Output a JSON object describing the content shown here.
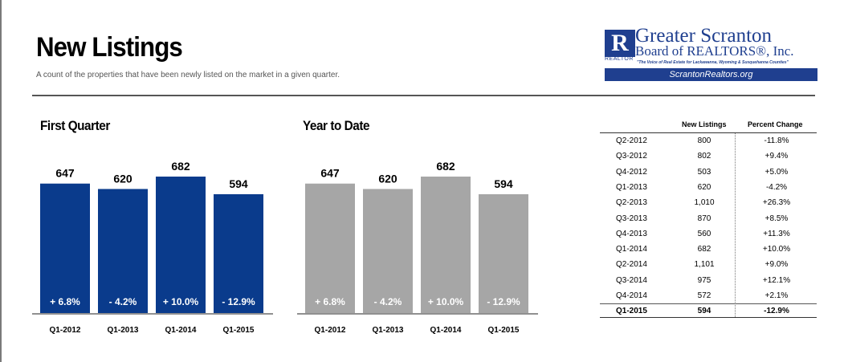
{
  "header": {
    "title": "New Listings",
    "subtitle": "A count of the properties that have been newly listed on the market in a given quarter."
  },
  "logo": {
    "line1": "Greater Scranton",
    "line2": "Board of REALTORS®, Inc.",
    "realtor": "REALTOR",
    "tagline": "\"The Voice of Real Estate for Lackawanna, Wyoming & Susquehanna Counties\"",
    "url": "ScrantonRealtors.org",
    "color": "#1f3f8f"
  },
  "chart_data": [
    {
      "type": "bar",
      "title": "First Quarter",
      "categories": [
        "Q1-2012",
        "Q1-2013",
        "Q1-2014",
        "Q1-2015"
      ],
      "values": [
        647,
        620,
        682,
        594
      ],
      "value_labels": [
        "647",
        "620",
        "682",
        "594"
      ],
      "change_labels": [
        "+ 6.8%",
        "- 4.2%",
        "+ 10.0%",
        "- 12.9%"
      ],
      "color": "#0a3b8c",
      "ylim": [
        0,
        682
      ]
    },
    {
      "type": "bar",
      "title": "Year to Date",
      "categories": [
        "Q1-2012",
        "Q1-2013",
        "Q1-2014",
        "Q1-2015"
      ],
      "values": [
        647,
        620,
        682,
        594
      ],
      "value_labels": [
        "647",
        "620",
        "682",
        "594"
      ],
      "change_labels": [
        "+ 6.8%",
        "- 4.2%",
        "+ 10.0%",
        "- 12.9%"
      ],
      "color": "#a6a6a6",
      "ylim": [
        0,
        682
      ]
    },
    {
      "type": "table",
      "columns": [
        "",
        "New Listings",
        "Percent Change"
      ],
      "rows": [
        {
          "quarter": "Q2-2012",
          "listings": "800",
          "change": "-11.8%"
        },
        {
          "quarter": "Q3-2012",
          "listings": "802",
          "change": "+9.4%"
        },
        {
          "quarter": "Q4-2012",
          "listings": "503",
          "change": "+5.0%"
        },
        {
          "quarter": "Q1-2013",
          "listings": "620",
          "change": "-4.2%"
        },
        {
          "quarter": "Q2-2013",
          "listings": "1,010",
          "change": "+26.3%"
        },
        {
          "quarter": "Q3-2013",
          "listings": "870",
          "change": "+8.5%"
        },
        {
          "quarter": "Q4-2013",
          "listings": "560",
          "change": "+11.3%"
        },
        {
          "quarter": "Q1-2014",
          "listings": "682",
          "change": "+10.0%"
        },
        {
          "quarter": "Q2-2014",
          "listings": "1,101",
          "change": "+9.0%"
        },
        {
          "quarter": "Q3-2014",
          "listings": "975",
          "change": "+12.1%"
        },
        {
          "quarter": "Q4-2014",
          "listings": "572",
          "change": "+2.1%"
        },
        {
          "quarter": "Q1-2015",
          "listings": "594",
          "change": "-12.9%"
        }
      ]
    }
  ]
}
